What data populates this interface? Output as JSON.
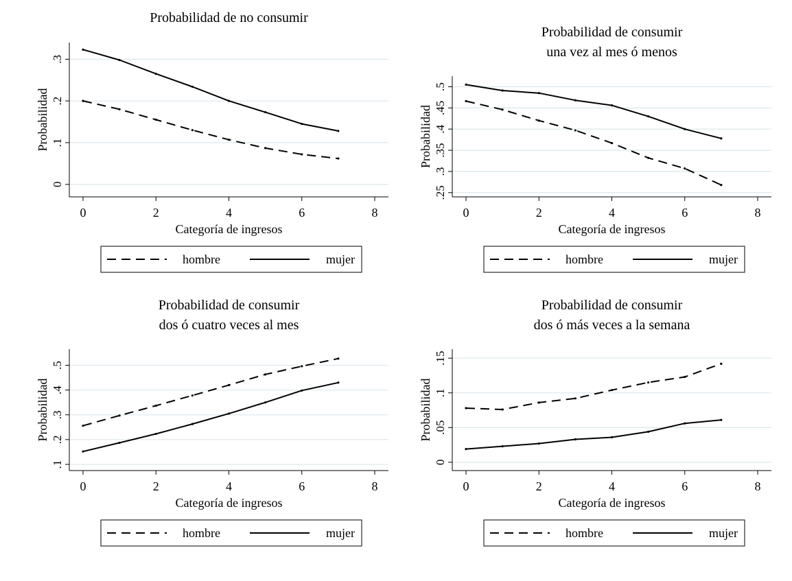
{
  "chart_data": [
    {
      "type": "line",
      "title": [
        "Probabilidad de no consumir"
      ],
      "xlabel": "Categoría de ingresos",
      "ylabel": "Probabilidad",
      "xlim": [
        0,
        8
      ],
      "ylim": [
        -0.03,
        0.34
      ],
      "xticks": [
        0,
        2,
        4,
        6,
        8
      ],
      "yticks": [
        0,
        0.1,
        0.2,
        0.3
      ],
      "ytick_labels": [
        "0",
        ".1",
        ".2",
        ".3"
      ],
      "grid": true,
      "legend_position": "bottom",
      "series": [
        {
          "name": "hombre",
          "style": "dashed",
          "x": [
            0,
            1,
            2,
            3,
            4,
            5,
            6,
            7
          ],
          "values": [
            0.2,
            0.18,
            0.155,
            0.13,
            0.107,
            0.087,
            0.072,
            0.062
          ]
        },
        {
          "name": "mujer",
          "style": "solid",
          "x": [
            0,
            1,
            2,
            3,
            4,
            5,
            6,
            7
          ],
          "values": [
            0.323,
            0.298,
            0.265,
            0.234,
            0.2,
            0.173,
            0.145,
            0.128
          ]
        }
      ]
    },
    {
      "type": "line",
      "title": [
        "Probabilidad de consumir",
        "una vez al mes ó menos"
      ],
      "xlabel": "Categoría de ingresos",
      "ylabel": "Probabilidad",
      "xlim": [
        0,
        8
      ],
      "ylim": [
        0.24,
        0.525
      ],
      "xticks": [
        0,
        2,
        4,
        6,
        8
      ],
      "yticks": [
        0.25,
        0.3,
        0.35,
        0.4,
        0.45,
        0.5
      ],
      "ytick_labels": [
        ".25",
        ".3",
        ".35",
        ".4",
        ".45",
        ".5"
      ],
      "grid": true,
      "legend_position": "bottom",
      "series": [
        {
          "name": "hombre",
          "style": "dashed",
          "x": [
            0,
            1,
            2,
            3,
            4,
            5,
            6,
            7
          ],
          "values": [
            0.466,
            0.446,
            0.42,
            0.397,
            0.367,
            0.332,
            0.307,
            0.268
          ]
        },
        {
          "name": "mujer",
          "style": "solid",
          "x": [
            0,
            1,
            2,
            3,
            4,
            5,
            6,
            7
          ],
          "values": [
            0.505,
            0.491,
            0.485,
            0.468,
            0.456,
            0.43,
            0.4,
            0.378
          ]
        }
      ]
    },
    {
      "type": "line",
      "title": [
        "Probabilidad de consumir",
        "dos ó cuatro veces al mes"
      ],
      "xlabel": "Categoría de ingresos",
      "ylabel": "Probabilidad",
      "xlim": [
        0,
        8
      ],
      "ylim": [
        0.075,
        0.565
      ],
      "xticks": [
        0,
        2,
        4,
        6,
        8
      ],
      "yticks": [
        0.1,
        0.2,
        0.3,
        0.4,
        0.5
      ],
      "ytick_labels": [
        ".1",
        ".2",
        ".3",
        ".4",
        ".5"
      ],
      "grid": true,
      "legend_position": "bottom",
      "series": [
        {
          "name": "hombre",
          "style": "dashed",
          "x": [
            0,
            1,
            2,
            3,
            4,
            5,
            6,
            7
          ],
          "values": [
            0.256,
            0.297,
            0.337,
            0.378,
            0.42,
            0.463,
            0.496,
            0.527
          ]
        },
        {
          "name": "mujer",
          "style": "solid",
          "x": [
            0,
            1,
            2,
            3,
            4,
            5,
            6,
            7
          ],
          "values": [
            0.152,
            0.187,
            0.223,
            0.263,
            0.305,
            0.35,
            0.398,
            0.43
          ]
        }
      ]
    },
    {
      "type": "line",
      "title": [
        "Probabilidad de consumir",
        "dos ó más veces a la semana"
      ],
      "xlabel": "Categoría de ingresos",
      "ylabel": "Probabilidad",
      "xlim": [
        0,
        8
      ],
      "ylim": [
        -0.012,
        0.163
      ],
      "xticks": [
        0,
        2,
        4,
        6,
        8
      ],
      "yticks": [
        0,
        0.05,
        0.1,
        0.15
      ],
      "ytick_labels": [
        "0",
        ".05",
        ".1",
        ".15"
      ],
      "grid": true,
      "legend_position": "bottom",
      "series": [
        {
          "name": "hombre",
          "style": "dashed",
          "x": [
            0,
            1,
            2,
            3,
            4,
            5,
            6,
            7
          ],
          "values": [
            0.078,
            0.076,
            0.086,
            0.092,
            0.104,
            0.115,
            0.123,
            0.142
          ]
        },
        {
          "name": "mujer",
          "style": "solid",
          "x": [
            0,
            1,
            2,
            3,
            4,
            5,
            6,
            7
          ],
          "values": [
            0.019,
            0.023,
            0.027,
            0.033,
            0.036,
            0.044,
            0.056,
            0.061
          ]
        }
      ]
    }
  ]
}
